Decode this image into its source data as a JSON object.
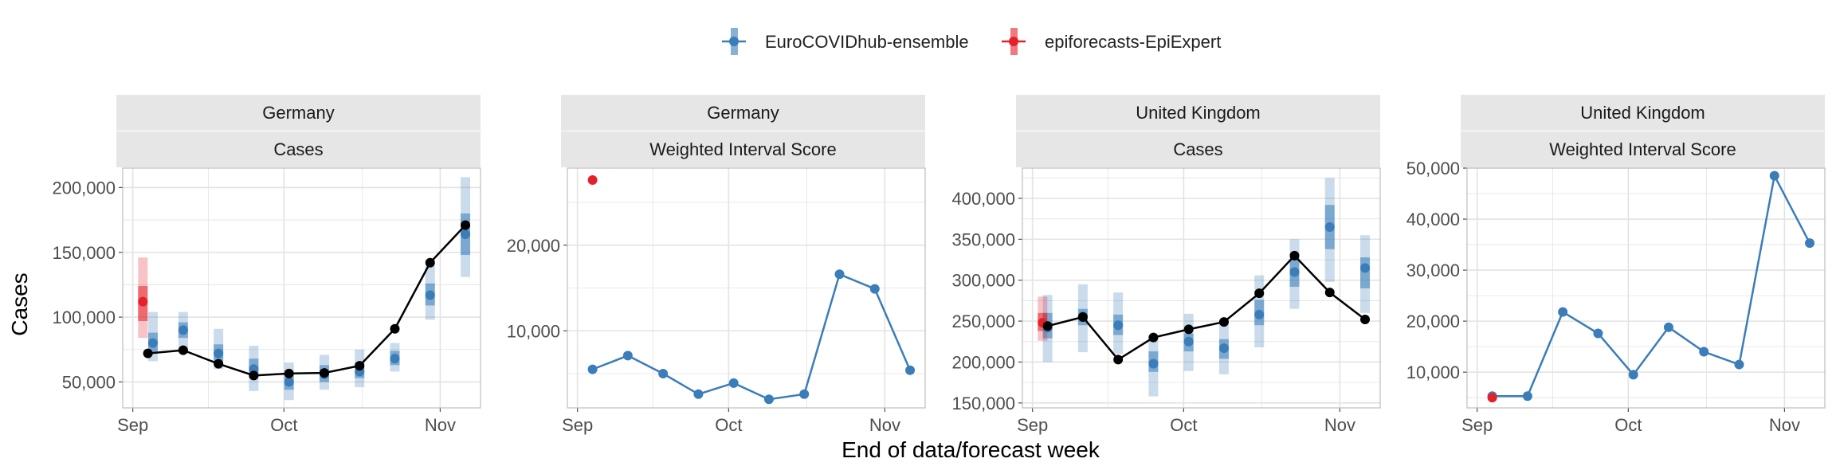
{
  "figure": {
    "y_axis_title": "Cases",
    "x_axis_title": "End of data/forecast week"
  },
  "legend": {
    "position": "top",
    "items": [
      {
        "label": "EuroCOVIDhub-ensemble",
        "color": "#3A7DB9"
      },
      {
        "label": "epiforecasts-EpiExpert",
        "color": "#E4212B"
      }
    ]
  },
  "colors": {
    "ensemble": "#3A7DB9",
    "expert": "#E4212B",
    "observed": "#000000",
    "strip_bg": "#E6E6E6",
    "grid": "#E3E3E3",
    "panel_border": "#BDBDBD"
  },
  "chart_data": [
    {
      "type": "line",
      "strip_top": "Germany",
      "strip_bottom": "Cases",
      "x_ticks": [
        "Sep",
        "Oct",
        "Nov"
      ],
      "x_tick_values": [
        0,
        30,
        61
      ],
      "xlim": [
        -2,
        69
      ],
      "ylim": [
        30000,
        215000
      ],
      "y_ticks": [
        50000,
        100000,
        150000,
        200000
      ],
      "y_tick_labels": [
        "50,000",
        "100,000",
        "150,000",
        "200,000"
      ],
      "grid": true,
      "observed": {
        "name": "observed",
        "x": [
          3,
          10,
          17,
          24,
          31,
          38,
          45,
          52,
          59,
          66
        ],
        "y": [
          72000,
          74500,
          64000,
          55000,
          56500,
          57000,
          62500,
          91000,
          142000,
          171000
        ]
      },
      "series": [
        {
          "name": "EuroCOVIDhub-ensemble",
          "x": [
            4,
            10,
            17,
            24,
            31,
            38,
            45,
            52,
            59,
            66
          ],
          "median": [
            80000,
            90000,
            72000,
            60000,
            50000,
            56000,
            58000,
            68000,
            117000,
            164000
          ],
          "inner": [
            [
              73000,
              88000
            ],
            [
              84000,
              96000
            ],
            [
              66000,
              79000
            ],
            [
              53000,
              68000
            ],
            [
              44000,
              57000
            ],
            [
              50000,
              63000
            ],
            [
              53000,
              65000
            ],
            [
              63000,
              74000
            ],
            [
              109000,
              126000
            ],
            [
              148000,
              180000
            ]
          ],
          "outer": [
            [
              66000,
              104000
            ],
            [
              74000,
              104000
            ],
            [
              60000,
              91000
            ],
            [
              43000,
              78000
            ],
            [
              36000,
              65000
            ],
            [
              44000,
              71000
            ],
            [
              46000,
              75000
            ],
            [
              58000,
              80000
            ],
            [
              98000,
              140000
            ],
            [
              131000,
              208000
            ]
          ]
        },
        {
          "name": "epiforecasts-EpiExpert",
          "x": [
            2
          ],
          "median": [
            112000
          ],
          "inner": [
            [
              97000,
              124000
            ]
          ],
          "outer": [
            [
              84000,
              146000
            ]
          ]
        }
      ]
    },
    {
      "type": "line",
      "strip_top": "Germany",
      "strip_bottom": "Weighted Interval Score",
      "x_ticks": [
        "Sep",
        "Oct",
        "Nov"
      ],
      "x_tick_values": [
        0,
        30,
        61
      ],
      "xlim": [
        -2,
        69
      ],
      "ylim": [
        1000,
        29000
      ],
      "y_ticks": [
        10000,
        20000
      ],
      "y_tick_labels": [
        "10,000",
        "20,000"
      ],
      "grid": true,
      "series": [
        {
          "name": "EuroCOVIDhub-ensemble",
          "x": [
            3,
            10,
            17,
            24,
            31,
            38,
            45,
            52,
            59,
            66
          ],
          "y": [
            5500,
            7100,
            5000,
            2600,
            3900,
            2000,
            2600,
            16600,
            14900,
            5400
          ]
        },
        {
          "name": "epiforecasts-EpiExpert",
          "x": [
            3
          ],
          "y": [
            27600
          ]
        }
      ]
    },
    {
      "type": "line",
      "strip_top": "United Kingdom",
      "strip_bottom": "Cases",
      "x_ticks": [
        "Sep",
        "Oct",
        "Nov"
      ],
      "x_tick_values": [
        0,
        30,
        61
      ],
      "xlim": [
        -2,
        69
      ],
      "ylim": [
        144000,
        437000
      ],
      "y_ticks": [
        150000,
        200000,
        250000,
        300000,
        350000,
        400000
      ],
      "y_tick_labels": [
        "150,000",
        "200,000",
        "250,000",
        "300,000",
        "350,000",
        "400,000"
      ],
      "grid": true,
      "observed": {
        "name": "observed",
        "x": [
          3,
          10,
          17,
          24,
          31,
          38,
          45,
          52,
          59,
          66
        ],
        "y": [
          244000,
          255000,
          203000,
          230000,
          240000,
          249000,
          284000,
          330000,
          285000,
          252000
        ]
      },
      "series": [
        {
          "name": "EuroCOVIDhub-ensemble",
          "x": [
            3,
            10,
            17,
            24,
            31,
            38,
            45,
            52,
            59,
            66
          ],
          "median": [
            242000,
            256000,
            245000,
            198000,
            225000,
            217000,
            258000,
            310000,
            365000,
            315000
          ],
          "inner": [
            [
              229000,
              260000
            ],
            [
              245000,
              265000
            ],
            [
              233000,
              258000
            ],
            [
              188000,
              213000
            ],
            [
              213000,
              235000
            ],
            [
              204000,
              228000
            ],
            [
              245000,
              276000
            ],
            [
              292000,
              328000
            ],
            [
              338000,
              392000
            ],
            [
              290000,
              328000
            ]
          ],
          "outer": [
            [
              200000,
              282000
            ],
            [
              212000,
              295000
            ],
            [
              210000,
              285000
            ],
            [
              158000,
              232000
            ],
            [
              189000,
              259000
            ],
            [
              185000,
              248000
            ],
            [
              218000,
              306000
            ],
            [
              265000,
              350000
            ],
            [
              298000,
              425000
            ],
            [
              260000,
              355000
            ]
          ]
        },
        {
          "name": "epiforecasts-EpiExpert",
          "x": [
            2
          ],
          "median": [
            248000
          ],
          "inner": [
            [
              238000,
              260000
            ]
          ],
          "outer": [
            [
              226000,
              280000
            ]
          ]
        }
      ]
    },
    {
      "type": "line",
      "strip_top": "United Kingdom",
      "strip_bottom": "Weighted Interval Score",
      "x_ticks": [
        "Sep",
        "Oct",
        "Nov"
      ],
      "x_tick_values": [
        0,
        30,
        61
      ],
      "xlim": [
        -2,
        69
      ],
      "ylim": [
        3000,
        50000
      ],
      "y_ticks": [
        10000,
        20000,
        30000,
        40000,
        50000
      ],
      "y_tick_labels": [
        "10,000",
        "20,000",
        "30,000",
        "40,000",
        "50,000"
      ],
      "grid": true,
      "series": [
        {
          "name": "EuroCOVIDhub-ensemble",
          "x": [
            3,
            10,
            17,
            24,
            31,
            38,
            45,
            52,
            59,
            66
          ],
          "y": [
            5300,
            5300,
            21800,
            17600,
            9500,
            18800,
            14000,
            11500,
            48500,
            35300
          ]
        },
        {
          "name": "epiforecasts-EpiExpert",
          "x": [
            3
          ],
          "y": [
            5000
          ]
        }
      ]
    }
  ]
}
